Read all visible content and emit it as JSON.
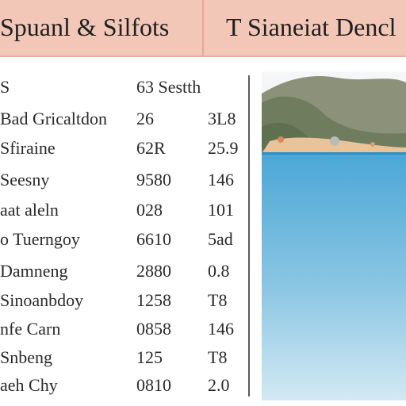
{
  "header": {
    "left_title": "Spuanl & Silfots",
    "right_title": "T Sianeiat Dencl"
  },
  "table": {
    "rows": [
      {
        "name": "S",
        "value1": "63 Sestth",
        "value2": ""
      },
      {
        "name": "Bad Gricaltdon",
        "value1": "26",
        "value2": "3L8"
      },
      {
        "name": "Sfiraine",
        "value1": "62R",
        "value2": "25.9"
      },
      {
        "name": "Seesny",
        "value1": "9580",
        "value2": "146"
      },
      {
        "name": "aat aleln",
        "value1": "028",
        "value2": "101"
      },
      {
        "name": "o Tuerngoy",
        "value1": "6610",
        "value2": "5ad"
      },
      {
        "name": "Damneng",
        "value1": "2880",
        "value2": "0.8"
      },
      {
        "name": "Sinoanbdoy",
        "value1": "1258",
        "value2": "T8"
      },
      {
        "name": "nfe Carn",
        "value1": "0858",
        "value2": "146"
      },
      {
        "name": "Snbeng",
        "value1": "125",
        "value2": "T8"
      },
      {
        "name": "aeh Chy",
        "value1": "0810",
        "value2": "2.0"
      }
    ]
  },
  "image": {
    "description_icon": "beach-landscape-illustration",
    "colors": {
      "sky": "#f3f5f7",
      "mountain_far": "#8c927a",
      "mountain_near": "#6f7d5e",
      "sand": "#e9c39a",
      "sea_top": "#4aa7d6",
      "sea_bottom": "#c9e3ef"
    }
  },
  "colors": {
    "header_bg": "#f2c7b8",
    "divider": "#5c5c5c"
  }
}
